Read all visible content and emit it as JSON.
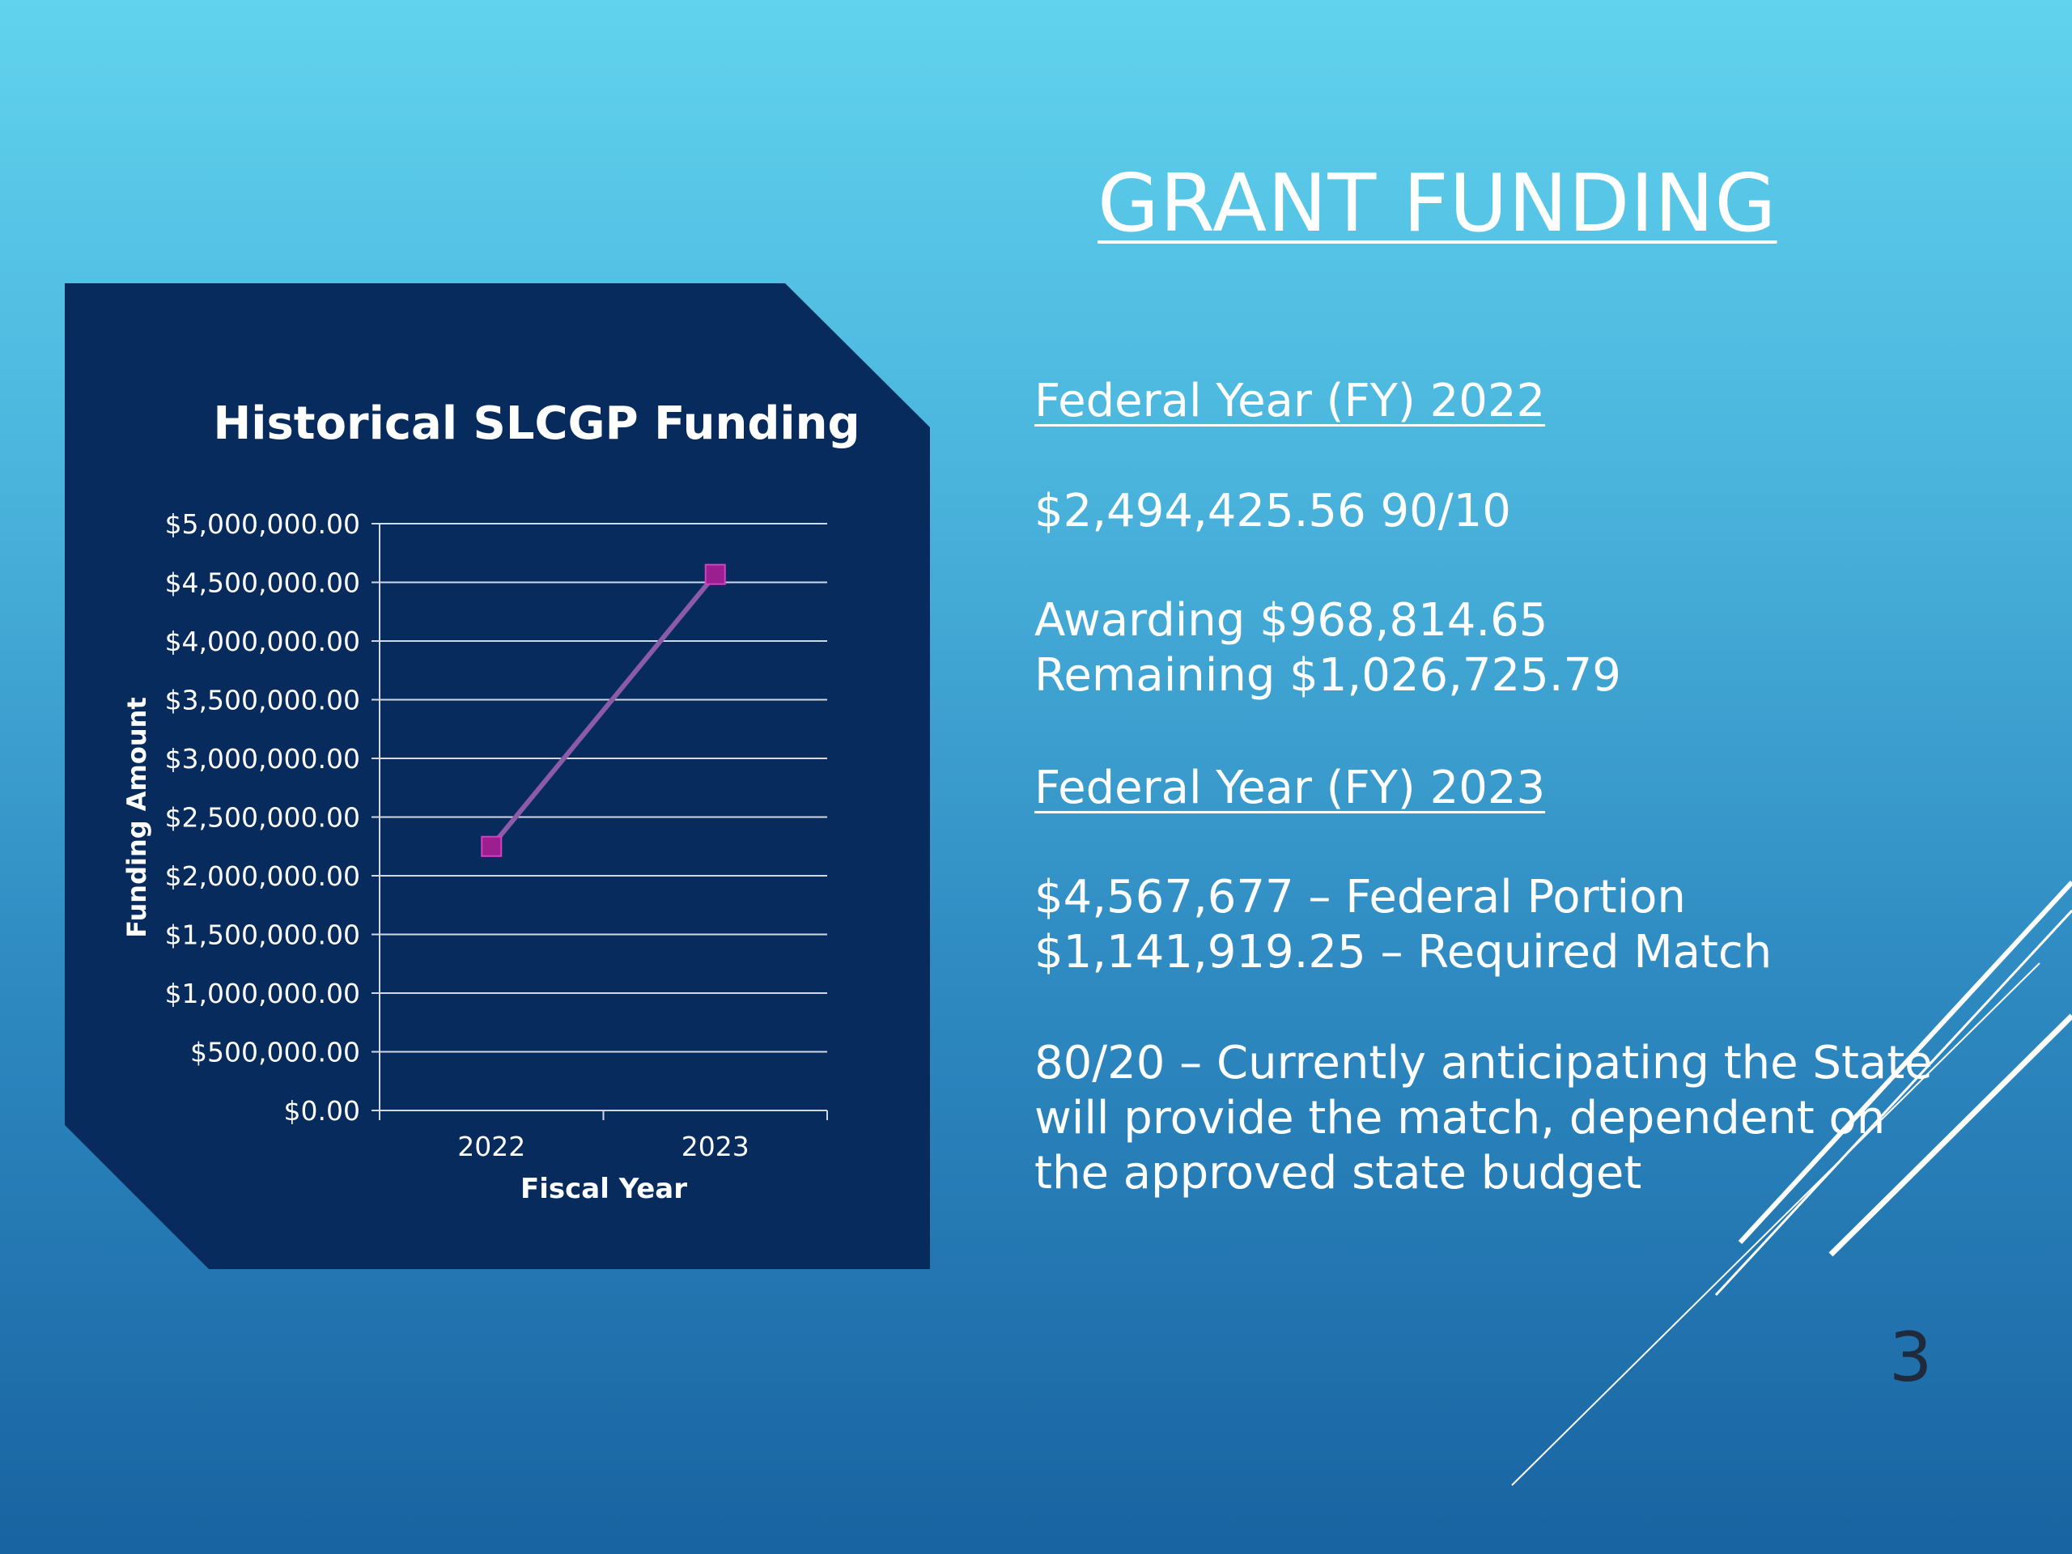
{
  "slide": {
    "title": "GRANT FUNDING",
    "page_number": "3",
    "fy2022": {
      "heading": "Federal Year (FY) 2022",
      "total": "$2,494,425.56 90/10",
      "awarding": "Awarding $968,814.65",
      "remaining": "Remaining $1,026,725.79"
    },
    "fy2023": {
      "heading": "Federal Year (FY) 2023",
      "federal_portion": "$4,567,677 – Federal Portion",
      "required_match": "$1,141,919.25 – Required Match",
      "note_lines": [
        "80/20 – Currently anticipating the State",
        "will provide the match, dependent on",
        "the approved state budget"
      ]
    }
  },
  "colors": {
    "panel": "#062b5c",
    "line": "#8c5ba8",
    "marker": "#9b1f8e",
    "grid": "#d0d8e4",
    "text_on_panel": "#ffffff"
  },
  "chart_data": {
    "type": "line",
    "title": "Historical SLCGP Funding",
    "xlabel": "Fiscal Year",
    "ylabel": "Funding Amount",
    "categories": [
      "2022",
      "2023"
    ],
    "series": [
      {
        "values": [
          2250000,
          4567677
        ]
      }
    ],
    "ylim": [
      0,
      5000000
    ],
    "yticks": [
      0,
      500000,
      1000000,
      1500000,
      2000000,
      2500000,
      3000000,
      3500000,
      4000000,
      4500000,
      5000000
    ],
    "ytick_labels": [
      "$0.00",
      "$500,000.00",
      "$1,000,000.00",
      "$1,500,000.00",
      "$2,000,000.00",
      "$2,500,000.00",
      "$3,000,000.00",
      "$3,500,000.00",
      "$4,000,000.00",
      "$4,500,000.00",
      "$5,000,000.00"
    ],
    "grid": true,
    "legend": "none"
  }
}
